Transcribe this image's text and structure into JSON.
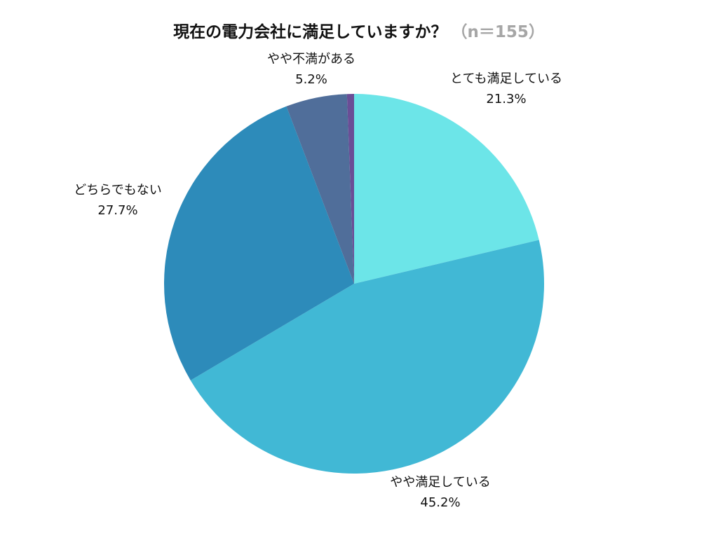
{
  "chart_data": {
    "type": "pie",
    "title": "現在の電力会社に満足していますか？",
    "n_label": "（n＝155）",
    "legend": "none",
    "slices": [
      {
        "label": "とても満足している",
        "value": 21.3,
        "value_label": "21.3%",
        "color": "#6ce5e8"
      },
      {
        "label": "やや満足している",
        "value": 45.2,
        "value_label": "45.2%",
        "color": "#41b8d5"
      },
      {
        "label": "どちらでもない",
        "value": 27.7,
        "value_label": "27.7%",
        "color": "#2d8bba"
      },
      {
        "label": "やや不満がある",
        "value": 5.2,
        "value_label": "5.2%",
        "color": "#506e9a"
      },
      {
        "label": "",
        "value": 0.6,
        "value_label": "",
        "color": "#6a4e96"
      }
    ]
  }
}
